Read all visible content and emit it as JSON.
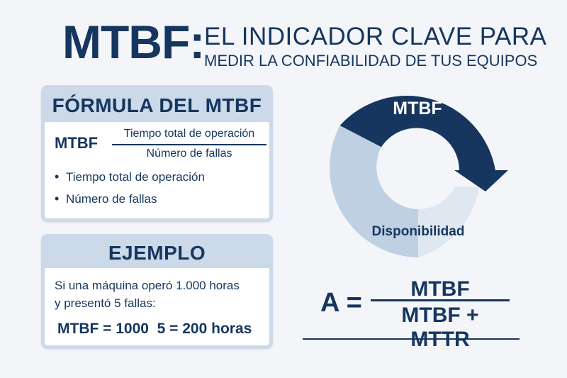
{
  "header": {
    "title_main": "MTBF:",
    "title_sub_line1": "EL INDICADOR CLAVE PARA",
    "title_sub_line2": "MEDIR LA CONFIABILIDAD DE TUS EQUIPOS"
  },
  "formula_card": {
    "heading": "FÓRMULA DEL MTBF",
    "lhs": "MTBF",
    "numerator": "Tiempo total de operación",
    "denominator": "Número de fallas",
    "bullets": [
      "Tiempo total de operación",
      "Número de fallas"
    ]
  },
  "example_card": {
    "heading": "EJEMPLO",
    "text_line1": "Si una máquina operó 1.000 horas",
    "text_line2": "y presentó 5 fallas:",
    "calculation": "MTBF = 1000  5 = 200 horas"
  },
  "cycle_diagram": {
    "top_label": "MTBF",
    "bottom_label": "Disponibilidad",
    "colors": {
      "dark": "#16365f",
      "mid": "#bfd0e2",
      "light": "#dfe8f1"
    }
  },
  "availability_formula": {
    "lhs": "A =",
    "numerator": "MTBF",
    "denominator": "MTBF + MTTR"
  }
}
